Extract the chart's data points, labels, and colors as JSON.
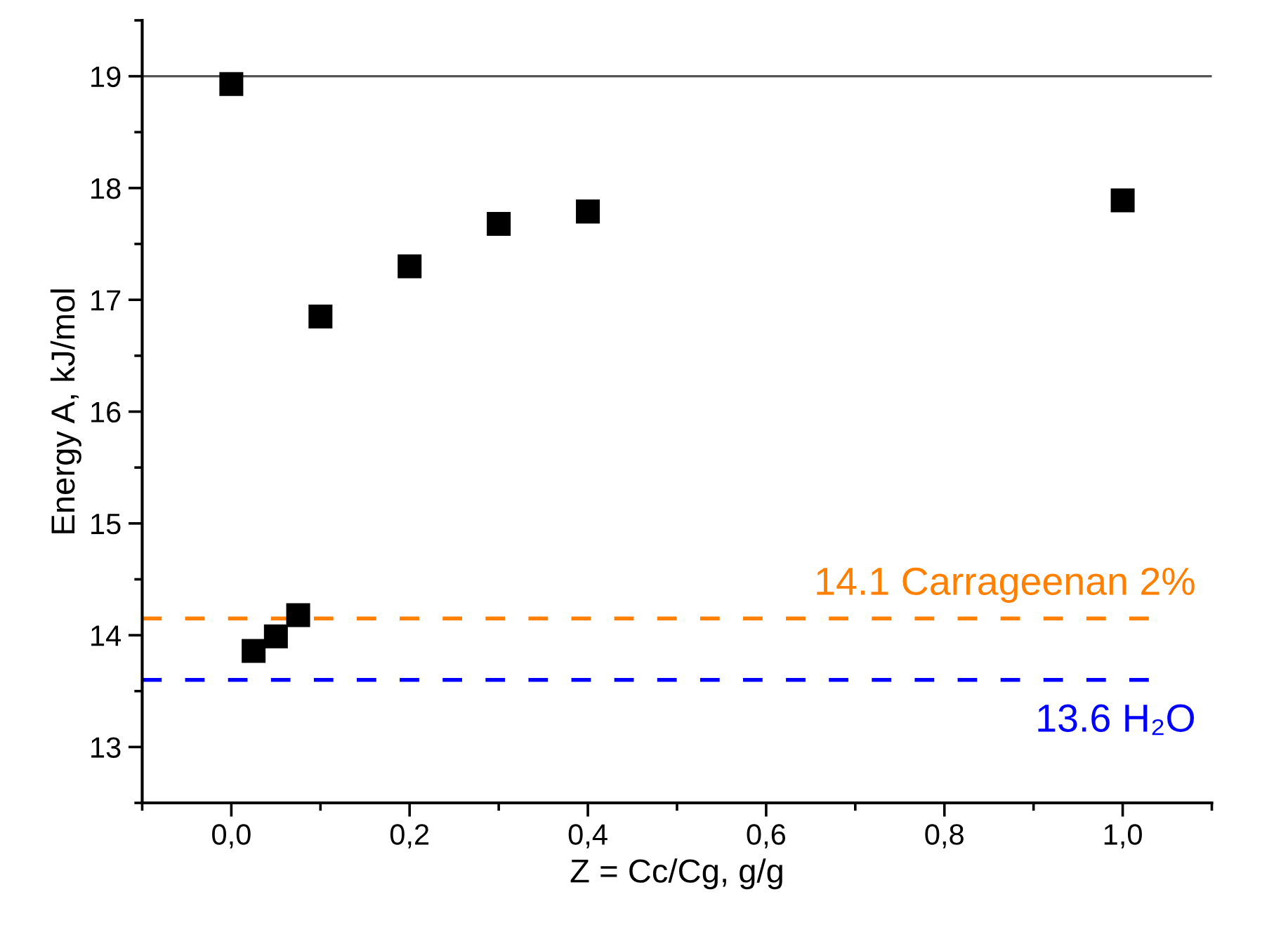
{
  "chart_data": {
    "type": "scatter",
    "xlabel": "Z = Cc/Cg, g/g",
    "ylabel": "Energy A, kJ/mol",
    "x": [
      0,
      0.025,
      0.05,
      0.075,
      0.1,
      0.2,
      0.3,
      0.4,
      1.0
    ],
    "values": [
      18.93,
      13.86,
      13.99,
      14.18,
      16.85,
      17.3,
      17.68,
      17.79,
      17.89
    ],
    "color": "#000000",
    "marker": "square",
    "xlim": [
      -0.1,
      1.1
    ],
    "xticks": [
      {
        "value": 0,
        "label": "0,0"
      },
      {
        "value": 0.2,
        "label": "0,2"
      },
      {
        "value": 0.4,
        "label": "0,4"
      },
      {
        "value": 0.6,
        "label": "0,6"
      },
      {
        "value": 0.8,
        "label": "0,8"
      },
      {
        "value": 1.0,
        "label": "1,0"
      }
    ],
    "ylim": [
      12.5,
      19.5
    ],
    "yticks": [
      13,
      14,
      15,
      16,
      17,
      18,
      19
    ],
    "ref_lines": [
      {
        "axis": "y",
        "value": 19,
        "label": null,
        "color": "#555555",
        "line_style": "solid"
      },
      {
        "axis": "y",
        "value": 14.15,
        "label": "14.1 Carrageenan 2%",
        "color": "#ff8000",
        "line_style": "dashed"
      },
      {
        "axis": "y",
        "value": 13.6,
        "label": "13.6 H₂O",
        "color": "#0000ff",
        "line_style": "dashed"
      }
    ],
    "grid": false,
    "legend": false
  }
}
